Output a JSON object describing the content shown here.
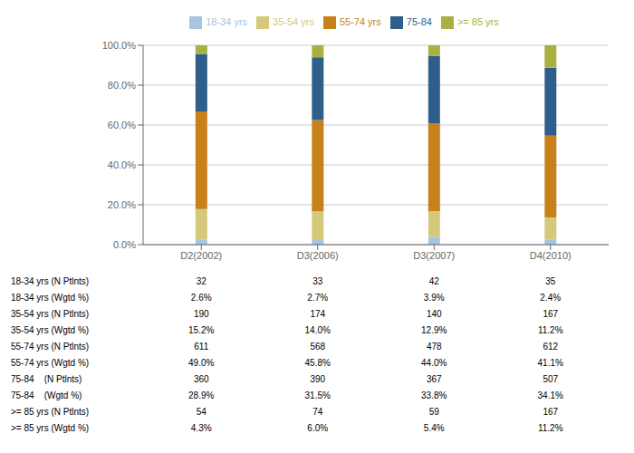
{
  "chart_data": {
    "type": "bar",
    "stacked": true,
    "categories": [
      "D2(2002)",
      "D3(2006)",
      "D3(2007)",
      "D4(2010)"
    ],
    "series": [
      {
        "name": "18-34 yrs",
        "color": "#a8c4de",
        "values": [
          2.6,
          2.7,
          3.9,
          2.4
        ]
      },
      {
        "name": "35-54 yrs",
        "color": "#d4c97a",
        "values": [
          15.2,
          14.0,
          12.9,
          11.2
        ]
      },
      {
        "name": "55-74 yrs",
        "color": "#c8811a",
        "values": [
          49.0,
          45.8,
          44.0,
          41.1
        ]
      },
      {
        "name": "75-84",
        "color": "#2e5f8a",
        "values": [
          28.9,
          31.5,
          33.8,
          34.1
        ]
      },
      {
        "name": ">= 85 yrs",
        "color": "#a8b040",
        "values": [
          4.3,
          6.0,
          5.4,
          11.2
        ]
      }
    ],
    "ylim": [
      0,
      100
    ],
    "yticks": [
      {
        "value": 0,
        "label": "0.0%"
      },
      {
        "value": 20,
        "label": "20.0%"
      },
      {
        "value": 40,
        "label": "40.0%"
      },
      {
        "value": 60,
        "label": "60.0%"
      },
      {
        "value": 80,
        "label": "80.0%"
      },
      {
        "value": 100,
        "label": "100.0%"
      }
    ],
    "grid": true,
    "legend": "top",
    "table_rows": [
      [
        "18-34 yrs (N Ptlnts)",
        32,
        33,
        42,
        35
      ],
      [
        "18-34 yrs (Wgtd %)",
        "2.6%",
        "2.7%",
        "3.9%",
        "2.4%"
      ],
      [
        "35-54 yrs (N Ptlnts)",
        190,
        174,
        140,
        167
      ],
      [
        "35-54 yrs (Wgtd %)",
        "15.2%",
        "14.0%",
        "12.9%",
        "11.2%"
      ],
      [
        "55-74 yrs (N Ptlnts)",
        611,
        568,
        478,
        612
      ],
      [
        "55-74 yrs (Wgtd %)",
        "49.0%",
        "45.8%",
        "44.0%",
        "41.1%"
      ],
      [
        "75-84    (N Ptlnts)",
        360,
        390,
        367,
        507
      ],
      [
        "75-84    (Wgtd %)",
        "28.9%",
        "31.5%",
        "33.8%",
        "34.1%"
      ],
      [
        ">= 85 yrs (N Ptlnts)",
        54,
        74,
        59,
        167
      ],
      [
        ">= 85 yrs (Wgtd %)",
        "4.3%",
        "6.0%",
        "5.4%",
        "11.2%"
      ]
    ]
  }
}
